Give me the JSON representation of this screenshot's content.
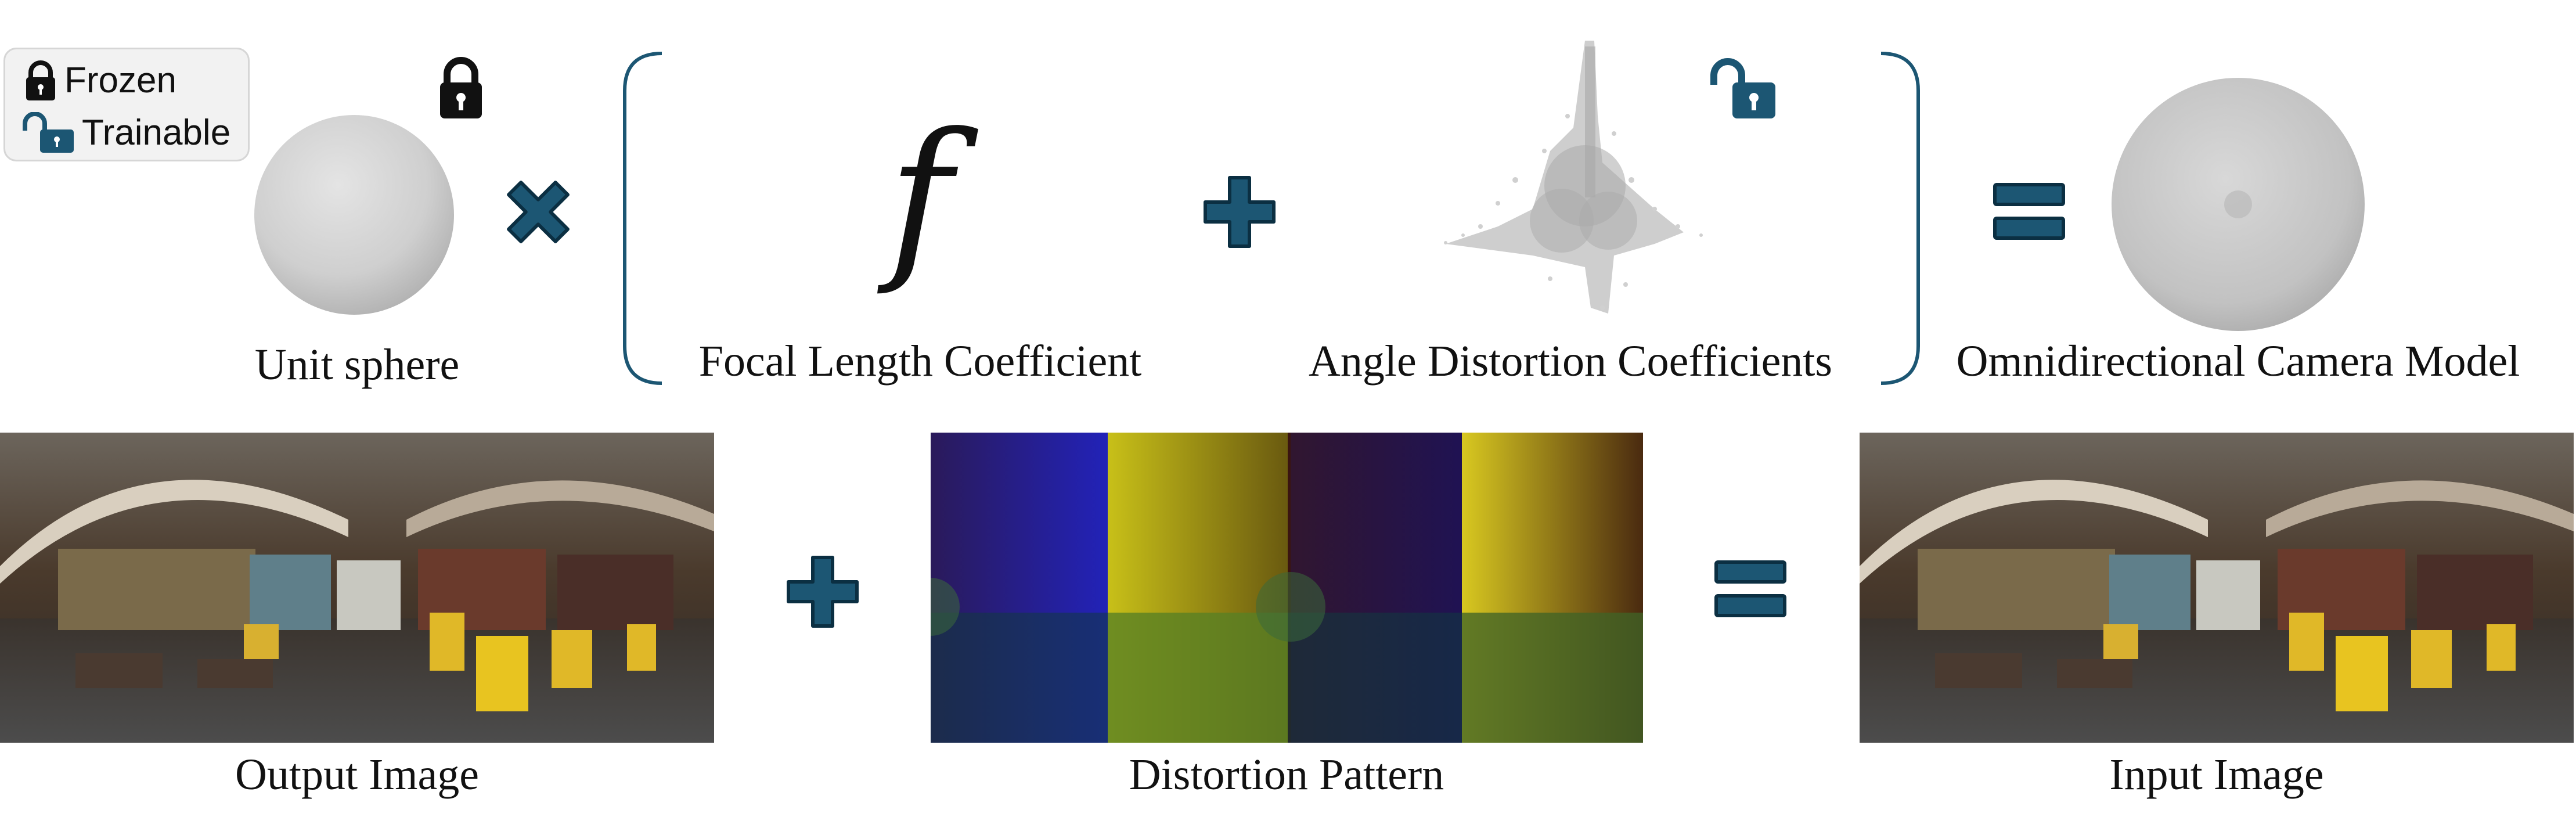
{
  "legend": {
    "frozen_label": "Frozen",
    "trainable_label": "Trainable"
  },
  "top_row": {
    "unit_sphere_label": "Unit sphere",
    "focal_symbol": "f",
    "focal_label": "Focal Length Coefficient",
    "angle_label": "Angle Distortion Coefficients",
    "omni_label": "Omnidirectional Camera Model",
    "multiply_icon": "multiply-icon",
    "plus_icon": "plus-icon",
    "equals_icon": "equals-icon"
  },
  "bottom_row": {
    "output_label": "Output Image",
    "distortion_label": "Distortion Pattern",
    "input_label": "Input Image"
  },
  "colors": {
    "accent": "#1c5673",
    "accent_dark": "#0b2f42",
    "sphere": "#c9c9c9",
    "frozen_lock": "#111111"
  }
}
